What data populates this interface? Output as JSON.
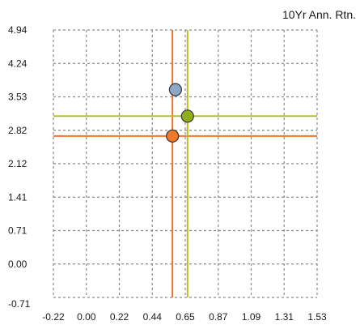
{
  "chart_data": {
    "type": "scatter",
    "title": "10Yr Ann. Rtn.",
    "xlabel": "",
    "ylabel": "",
    "xlim": [
      -0.22,
      1.53
    ],
    "ylim": [
      -0.71,
      4.94
    ],
    "x_ticks": [
      "-0.22",
      "0.00",
      "0.22",
      "0.44",
      "0.65",
      "0.87",
      "1.09",
      "1.31",
      "1.53"
    ],
    "y_ticks": [
      "-0.71",
      "0.00",
      "0.71",
      "1.41",
      "2.12",
      "2.82",
      "3.53",
      "4.24",
      "4.94"
    ],
    "grid": true,
    "points": [
      {
        "x": 0.59,
        "y": 3.68,
        "color": "#8ea7c8"
      },
      {
        "x": 0.67,
        "y": 3.12,
        "color": "#8fae1b"
      },
      {
        "x": 0.57,
        "y": 2.7,
        "color": "#f07828"
      }
    ],
    "reference_lines": [
      {
        "orientation": "vertical",
        "value": 0.57,
        "color": "#e8742a"
      },
      {
        "orientation": "horizontal",
        "value": 2.7,
        "color": "#e8742a"
      },
      {
        "orientation": "vertical",
        "value": 0.67,
        "color": "#b5c21a"
      },
      {
        "orientation": "horizontal",
        "value": 3.12,
        "color": "#b5c21a"
      }
    ],
    "colors": {
      "grid": "#8a8a8a",
      "point_stroke": "#333333"
    }
  }
}
